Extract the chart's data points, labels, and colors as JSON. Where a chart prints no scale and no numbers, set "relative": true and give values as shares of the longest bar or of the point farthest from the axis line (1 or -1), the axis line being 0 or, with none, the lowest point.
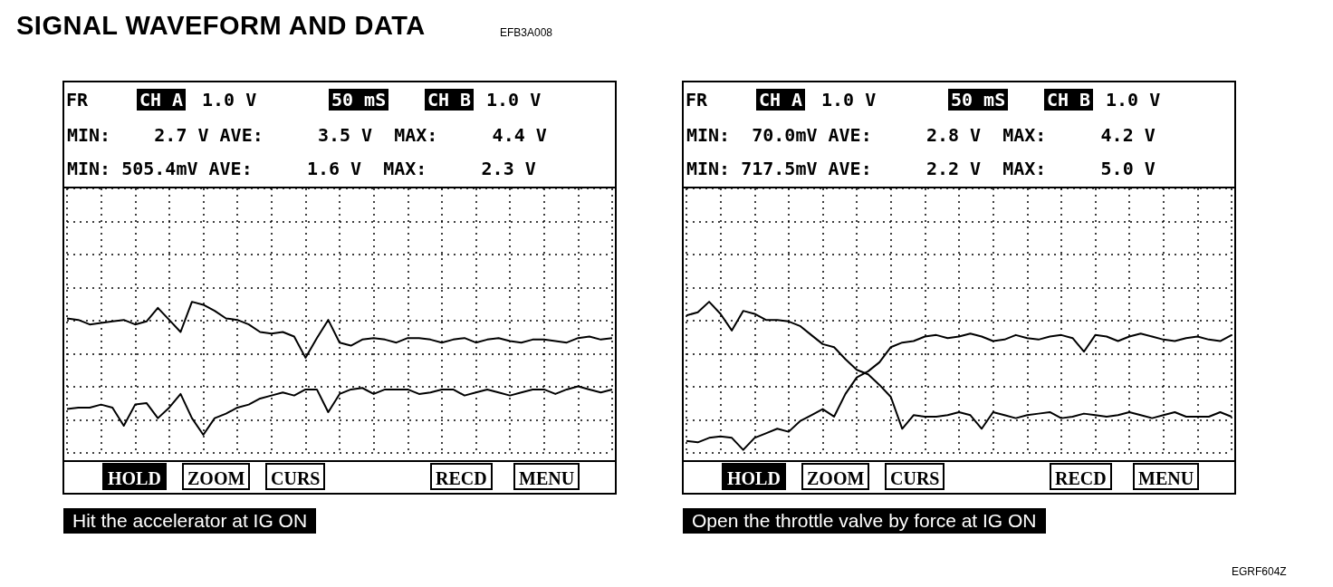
{
  "chart_data": [
    {
      "type": "line",
      "title": "SIGNAL WAVEFORM AND DATA",
      "relative": true,
      "grid": true,
      "marker": "none",
      "categories": [
        null,
        null,
        null,
        null,
        null,
        null,
        null,
        null,
        null,
        null,
        null,
        null,
        null,
        null,
        null,
        null,
        null,
        null,
        null,
        null,
        null,
        null,
        null,
        null,
        null,
        null,
        null,
        null,
        null,
        null,
        null,
        null,
        null,
        null,
        null,
        null,
        null,
        null,
        null,
        null,
        null,
        null,
        null,
        null,
        null,
        null,
        null,
        null,
        null
      ],
      "series": [
        {
          "color": "#000000",
          "values": [
            0.89,
            0.88,
            0.85,
            0.86,
            0.87,
            0.88,
            0.85,
            0.87,
            0.96,
            0.88,
            0.8,
            1,
            0.98,
            0.94,
            0.89,
            0.88,
            0.85,
            0.8,
            0.79,
            0.8,
            0.77,
            0.63,
            0.76,
            0.88,
            0.73,
            0.71,
            0.75,
            0.76,
            0.75,
            0.73,
            0.76,
            0.76,
            0.75,
            0.73,
            0.75,
            0.76,
            0.73,
            0.75,
            0.76,
            0.74,
            0.73,
            0.75,
            0.75,
            0.74,
            0.73,
            0.76,
            0.77,
            0.75,
            0.76
          ]
        },
        {
          "color": "#000000",
          "values": [
            0.29,
            0.3,
            0.3,
            0.32,
            0.3,
            0.18,
            0.32,
            0.33,
            0.23,
            0.3,
            0.39,
            0.23,
            0.12,
            0.23,
            0.26,
            0.3,
            0.32,
            0.36,
            0.38,
            0.4,
            0.38,
            0.42,
            0.42,
            0.27,
            0.39,
            0.42,
            0.43,
            0.39,
            0.42,
            0.42,
            0.42,
            0.39,
            0.4,
            0.42,
            0.42,
            0.38,
            0.4,
            0.42,
            0.4,
            0.38,
            0.4,
            0.42,
            0.42,
            0.39,
            0.42,
            0.44,
            0.42,
            0.4,
            0.42
          ]
        }
      ],
      "annotations": [
        "FR",
        "CH A",
        "1.0 V",
        "50 mS",
        "CH B",
        "1.0 V",
        "MIN:    2.7 V AVE:     3.5 V  MAX:     4.4 V",
        "MIN: 505.4mV AVE:     1.6 V  MAX:     2.3 V",
        "HOLD",
        "ZOOM",
        "CURS",
        "RECD",
        "MENU",
        "Hit the accelerator at IG ON",
        "EFB3A008"
      ]
    },
    {
      "type": "line",
      "relative": true,
      "grid": true,
      "marker": "none",
      "categories": [
        null,
        null,
        null,
        null,
        null,
        null,
        null,
        null,
        null,
        null,
        null,
        null,
        null,
        null,
        null,
        null,
        null,
        null,
        null,
        null,
        null,
        null,
        null,
        null,
        null,
        null,
        null,
        null,
        null,
        null,
        null,
        null,
        null,
        null,
        null,
        null,
        null,
        null,
        null,
        null,
        null,
        null,
        null,
        null,
        null,
        null,
        null,
        null,
        null
      ],
      "series": [
        {
          "color": "#000000",
          "values": [
            0.91,
            0.93,
            1,
            0.92,
            0.81,
            0.94,
            0.92,
            0.88,
            0.88,
            0.87,
            0.84,
            0.78,
            0.72,
            0.7,
            0.62,
            0.55,
            0.52,
            0.45,
            0.37,
            0.16,
            0.25,
            0.24,
            0.24,
            0.25,
            0.27,
            0.25,
            0.16,
            0.27,
            0.25,
            0.23,
            0.25,
            0.26,
            0.27,
            0.23,
            0.24,
            0.26,
            0.25,
            0.24,
            0.25,
            0.27,
            0.25,
            0.23,
            0.25,
            0.27,
            0.24,
            0.24,
            0.24,
            0.27,
            0.24
          ]
        },
        {
          "color": "#000000",
          "values": [
            0.08,
            0.07,
            0.1,
            0.11,
            0.1,
            0.02,
            0.1,
            0.13,
            0.16,
            0.14,
            0.21,
            0.25,
            0.29,
            0.24,
            0.39,
            0.5,
            0.54,
            0.6,
            0.7,
            0.73,
            0.74,
            0.77,
            0.78,
            0.76,
            0.77,
            0.79,
            0.77,
            0.74,
            0.75,
            0.78,
            0.76,
            0.75,
            0.77,
            0.78,
            0.76,
            0.67,
            0.78,
            0.77,
            0.74,
            0.77,
            0.79,
            0.77,
            0.75,
            0.74,
            0.76,
            0.77,
            0.75,
            0.74,
            0.78
          ]
        }
      ],
      "annotations": [
        "FR",
        "CH A",
        "1.0 V",
        "50 mS",
        "CH B",
        "1.0 V",
        "MIN:  70.0mV AVE:     2.8 V  MAX:     4.2 V",
        "MIN: 717.5mV AVE:     2.2 V  MAX:     5.0 V",
        "HOLD",
        "ZOOM",
        "CURS",
        "RECD",
        "MENU",
        "Open the throttle valve by force at IG ON",
        "EGRF604Z"
      ]
    }
  ]
}
